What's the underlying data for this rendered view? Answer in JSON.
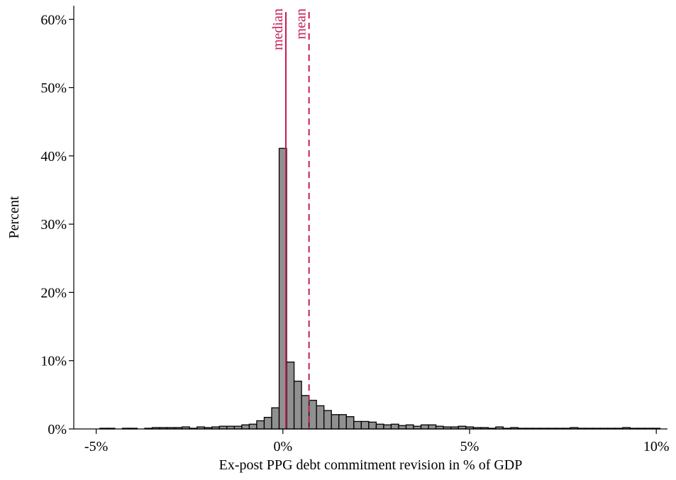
{
  "chart_data": {
    "type": "bar",
    "title": "",
    "xlabel": "Ex-post PPG debt commitment revision in % of GDP",
    "ylabel": "Percent",
    "xlim": [
      -5.6,
      10.3
    ],
    "ylim": [
      0,
      62
    ],
    "x_ticks": [
      {
        "value": -5,
        "label": "-5%"
      },
      {
        "value": 0,
        "label": "0%"
      },
      {
        "value": 5,
        "label": "5%"
      },
      {
        "value": 10,
        "label": "10%"
      }
    ],
    "y_ticks": [
      {
        "value": 0,
        "label": "0%"
      },
      {
        "value": 10,
        "label": "10%"
      },
      {
        "value": 20,
        "label": "20%"
      },
      {
        "value": 30,
        "label": "30%"
      },
      {
        "value": 40,
        "label": "40%"
      },
      {
        "value": 50,
        "label": "50%"
      },
      {
        "value": 60,
        "label": "60%"
      }
    ],
    "bin_width": 0.2,
    "bin_starts": [
      -4.9,
      -4.7,
      -4.5,
      -4.3,
      -4.1,
      -3.9,
      -3.7,
      -3.5,
      -3.3,
      -3.1,
      -2.9,
      -2.7,
      -2.5,
      -2.3,
      -2.1,
      -1.9,
      -1.7,
      -1.5,
      -1.3,
      -1.1,
      -0.9,
      -0.7,
      -0.5,
      -0.3,
      -0.1,
      0.1,
      0.3,
      0.5,
      0.7,
      0.9,
      1.1,
      1.3,
      1.5,
      1.7,
      1.9,
      2.1,
      2.3,
      2.5,
      2.7,
      2.9,
      3.1,
      3.3,
      3.5,
      3.7,
      3.9,
      4.1,
      4.3,
      4.5,
      4.7,
      4.9,
      5.1,
      5.3,
      5.5,
      5.7,
      5.9,
      6.1,
      6.3,
      6.5,
      6.7,
      6.9,
      7.1,
      7.3,
      7.5,
      7.7,
      7.9,
      8.1,
      8.3,
      8.5,
      8.7,
      8.9,
      9.1,
      9.3,
      9.5,
      9.7,
      9.9
    ],
    "values": [
      0.1,
      0.1,
      0.0,
      0.1,
      0.1,
      0.0,
      0.1,
      0.2,
      0.2,
      0.2,
      0.2,
      0.3,
      0.1,
      0.3,
      0.2,
      0.3,
      0.4,
      0.4,
      0.4,
      0.6,
      0.7,
      1.2,
      1.7,
      3.1,
      41.1,
      9.8,
      7.0,
      4.9,
      4.2,
      3.4,
      2.7,
      2.1,
      2.1,
      1.8,
      1.1,
      1.1,
      1.0,
      0.7,
      0.6,
      0.7,
      0.5,
      0.6,
      0.4,
      0.6,
      0.6,
      0.4,
      0.3,
      0.3,
      0.4,
      0.3,
      0.2,
      0.2,
      0.1,
      0.3,
      0.1,
      0.2,
      0.1,
      0.1,
      0.1,
      0.1,
      0.1,
      0.1,
      0.1,
      0.2,
      0.1,
      0.1,
      0.1,
      0.1,
      0.1,
      0.1,
      0.2,
      0.1,
      0.1,
      0.1,
      0.1
    ],
    "bar_color": "#909090",
    "bar_edge_color": "#000000",
    "reference_lines": [
      {
        "label": "median",
        "value": 0.08,
        "style": "solid",
        "color": "#c41e52"
      },
      {
        "label": "mean",
        "value": 0.7,
        "style": "dashed",
        "color": "#c41e52"
      }
    ],
    "grid": false,
    "legend": "none"
  }
}
